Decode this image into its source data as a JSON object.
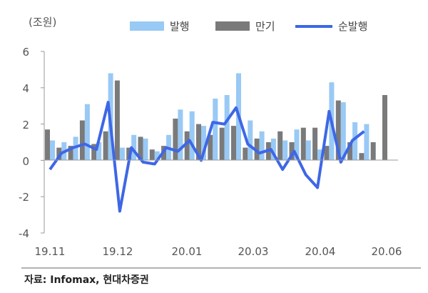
{
  "chart_data": {
    "type": "bar",
    "unit_label": "(조원)",
    "series": [
      {
        "name": "발행",
        "type": "bar",
        "color": "#99c9f5",
        "values": [
          1.1,
          1.0,
          1.3,
          3.1,
          1.0,
          4.8,
          0.7,
          1.4,
          1.2,
          0.5,
          1.4,
          2.8,
          2.7,
          1.9,
          3.4,
          3.6,
          4.8,
          2.2,
          1.6,
          1.2,
          1.1,
          1.7,
          1.1,
          0.6,
          4.3,
          3.2,
          2.1,
          2.0,
          0,
          0
        ]
      },
      {
        "name": "만기",
        "type": "bar",
        "color": "#7a7a7a",
        "values": [
          1.7,
          0.7,
          0.8,
          2.2,
          0.9,
          1.6,
          4.4,
          0.7,
          1.3,
          0.6,
          0.8,
          2.3,
          1.6,
          2.0,
          1.4,
          1.8,
          1.9,
          0.7,
          1.2,
          1.0,
          1.6,
          1.0,
          1.8,
          1.8,
          0.8,
          3.3,
          1.0,
          0.4,
          1.0,
          3.6
        ]
      },
      {
        "name": "순발행",
        "type": "line",
        "color": "#3e67e6",
        "values": [
          -0.5,
          0.4,
          0.7,
          0.9,
          0.6,
          3.2,
          -2.8,
          0.7,
          -0.1,
          -0.2,
          0.7,
          0.5,
          1.1,
          0.0,
          2.1,
          2.0,
          2.9,
          0.9,
          0.4,
          0.6,
          -0.5,
          0.5,
          -0.8,
          -1.5,
          2.7,
          -0.1,
          1.1,
          1.6
        ]
      }
    ],
    "bar_count_extra": [
      {
        "name": "만기",
        "value": 2.0
      }
    ],
    "x_tick_labels": [
      "19.11",
      "19.12",
      "20.01",
      "20.03",
      "20.04",
      "20.06"
    ],
    "y_ticks": [
      "6",
      "4",
      "2",
      "0",
      "-2",
      "-4"
    ],
    "ylim": [
      -4,
      6
    ],
    "legend_position": "top-right",
    "grid": false
  },
  "source": "자료: Infomax, 현대차증권"
}
